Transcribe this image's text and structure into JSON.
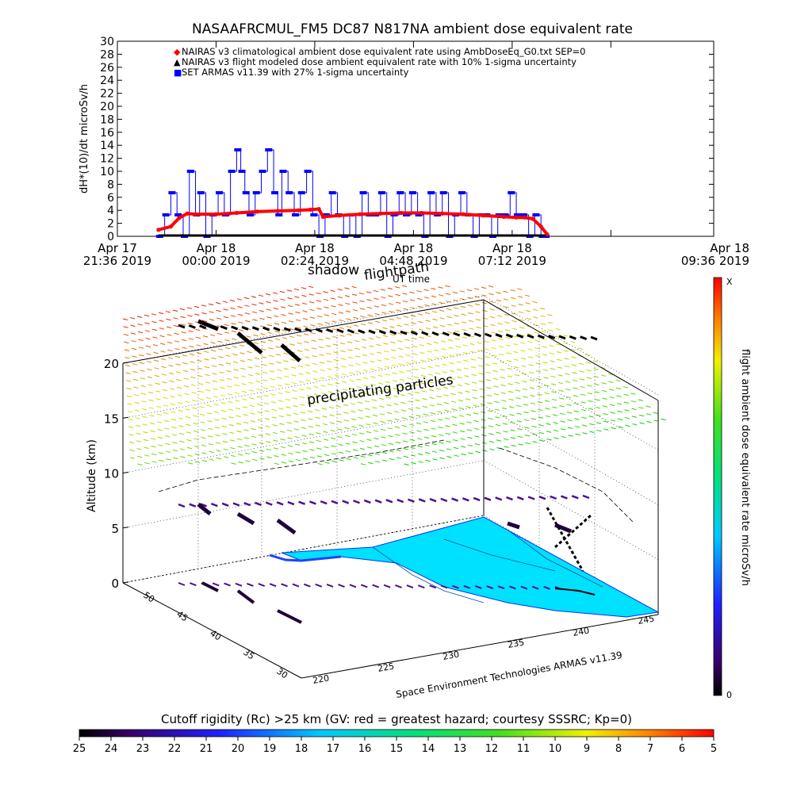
{
  "chart_data": [
    {
      "type": "line",
      "title": "NASAAFRCMUL_FM5 DC87 N817NA ambient dose equivalent rate",
      "ylabel": "dH*(10)/dt microSv/h",
      "xlabel": "UT time",
      "ylim": [
        0,
        30
      ],
      "yticks": [
        0,
        2,
        4,
        6,
        8,
        10,
        12,
        14,
        16,
        18,
        20,
        22,
        24,
        26,
        28,
        30
      ],
      "xrange_hours": [
        21.6,
        36.1
      ],
      "xticks": [
        {
          "h": 21.6,
          "line1": "Apr 17",
          "line2": "21:36 2019"
        },
        {
          "h": 24.0,
          "line1": "Apr 18",
          "line2": "00:00 2019"
        },
        {
          "h": 26.4,
          "line1": "Apr 18",
          "line2": "02:24 2019"
        },
        {
          "h": 28.8,
          "line1": "Apr 18",
          "line2": "04:48 2019"
        },
        {
          "h": 31.2,
          "line1": "Apr 18",
          "line2": "07:12 2019"
        },
        {
          "h": 33.6,
          "line1": "Apr 18",
          "line2": "09:36 2019"
        }
      ],
      "legend": [
        {
          "symbol": "◆",
          "color": "#ff0000",
          "label": "NAIRAS v3 climatological ambient dose equivalent rate using AmbDoseEq_G0.txt SEP=0"
        },
        {
          "symbol": "▲",
          "color": "#000000",
          "label": "NAIRAS v3 flight modeled dose ambient equivalent rate with 10% 1-sigma uncertainty"
        },
        {
          "symbol": "■",
          "color": "#0000ff",
          "label": "SET ARMAS v11.39 with 27% 1-sigma uncertainty"
        }
      ],
      "legend_position": "top-left",
      "series": [
        {
          "name": "NAIRAS v3 climatological ambient dose equivalent rate using AmbDoseEq_G0.txt SEP=0",
          "color": "#ff0000",
          "x": [
            22.6,
            22.9,
            23.1,
            23.3,
            23.5,
            24.0,
            24.5,
            25.0,
            25.5,
            26.0,
            26.3,
            26.5,
            26.6,
            27.0,
            27.5,
            28.0,
            28.5,
            29.0,
            29.5,
            30.0,
            30.5,
            31.0,
            31.3,
            31.5,
            31.7,
            31.9,
            32.05
          ],
          "values": [
            1.0,
            1.5,
            2.8,
            3.5,
            3.4,
            3.4,
            3.6,
            3.8,
            3.9,
            4.0,
            4.1,
            4.2,
            3.0,
            3.2,
            3.4,
            3.5,
            3.6,
            3.6,
            3.5,
            3.4,
            3.2,
            3.0,
            2.9,
            2.9,
            2.7,
            1.5,
            0.3
          ]
        },
        {
          "name": "NAIRAS v3 flight modeled dose ambient equivalent rate with 10% 1-sigma uncertainty",
          "color": "#000000",
          "x": [
            22.6,
            32.05
          ],
          "values": [
            0.0,
            0.0
          ]
        },
        {
          "name": "SET ARMAS v11.39 with 27% 1-sigma uncertainty",
          "color": "#0000ff",
          "x": [
            22.6,
            22.75,
            22.9,
            23.05,
            23.2,
            23.35,
            23.5,
            23.6,
            23.75,
            23.9,
            24.05,
            24.2,
            24.35,
            24.5,
            24.6,
            24.7,
            24.8,
            24.95,
            25.1,
            25.25,
            25.4,
            25.5,
            25.6,
            25.75,
            25.9,
            26.05,
            26.2,
            26.35,
            26.5,
            26.65,
            26.8,
            26.95,
            27.1,
            27.25,
            27.4,
            27.55,
            27.7,
            27.85,
            28.0,
            28.15,
            28.3,
            28.45,
            28.6,
            28.75,
            28.9,
            29.05,
            29.2,
            29.35,
            29.5,
            29.65,
            29.8,
            29.95,
            30.1,
            30.25,
            30.4,
            30.55,
            30.7,
            30.85,
            31.0,
            31.15,
            31.3,
            31.45,
            31.6,
            31.75,
            31.9,
            32.05
          ],
          "values": [
            0,
            3.3,
            6.7,
            3.3,
            0,
            10,
            3.3,
            6.7,
            0,
            3.3,
            6.7,
            3.3,
            10,
            13.3,
            10,
            6.7,
            3.3,
            6.7,
            10,
            13.3,
            6.7,
            3.3,
            10,
            6.7,
            3.3,
            6.7,
            10,
            3.3,
            0,
            3.3,
            6.7,
            3.3,
            0,
            3.3,
            0,
            6.7,
            3.3,
            3.3,
            6.7,
            0,
            3.3,
            6.7,
            3.3,
            6.7,
            3.3,
            0,
            6.7,
            3.3,
            6.7,
            0,
            3.3,
            6.7,
            3.3,
            0,
            3.3,
            3.3,
            0,
            3.3,
            3.3,
            6.7,
            3.3,
            3.3,
            0,
            3.3,
            0,
            0
          ]
        }
      ]
    },
    {
      "type": "other",
      "subtype": "3d-flightpath",
      "annotations": [
        "flightpath",
        "shadow",
        "precipitating particles"
      ],
      "zlabel": "Altitude (km)",
      "zticks": [
        0,
        5,
        10,
        15,
        20
      ],
      "lat_ticks": [
        30,
        35,
        40,
        45,
        50
      ],
      "lon_ticks": [
        220,
        225,
        230,
        235,
        240,
        245
      ],
      "credit": "Space Environment Technologies ARMAS v11.39",
      "colorbar_label": "flight ambient dose equivalent rate microSv/h",
      "colorbar_min": "0",
      "colorbar_max": "X"
    },
    {
      "type": "colorbar",
      "title": "Cutoff rigidity (Rc) >25 km (GV: red = greatest hazard; courtesy SSSRC; Kp=0)",
      "ticks": [
        25,
        24,
        23,
        22,
        21,
        20,
        19,
        18,
        17,
        16,
        15,
        14,
        13,
        12,
        11,
        10,
        9,
        8,
        7,
        6,
        5
      ]
    }
  ]
}
